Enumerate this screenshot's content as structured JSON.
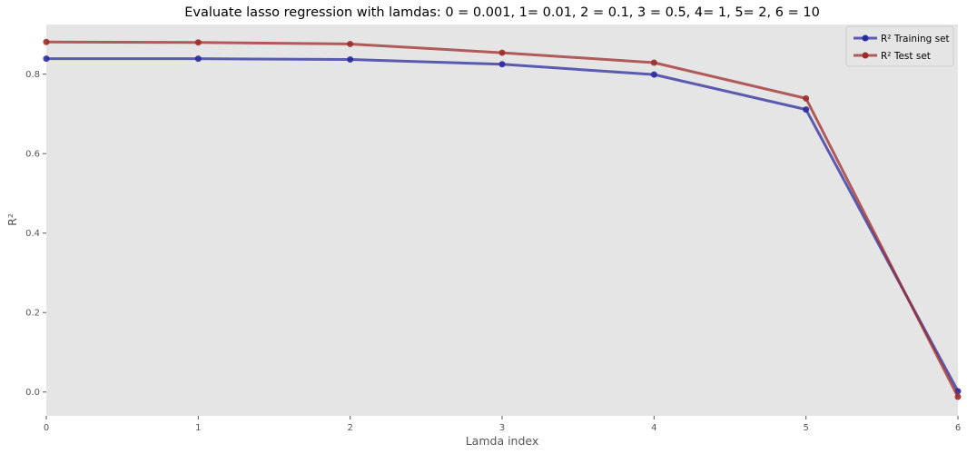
{
  "chart_data": {
    "type": "line",
    "title": "Evaluate lasso regression with lamdas: 0 = 0.001, 1= 0.01, 2 = 0.1, 3 = 0.5, 4= 1, 5= 2, 6 = 10",
    "xlabel": "Lamda index",
    "ylabel": "R²",
    "x": [
      0,
      1,
      2,
      3,
      4,
      5,
      6
    ],
    "xticks": [
      "0",
      "1",
      "2",
      "3",
      "4",
      "5",
      "6"
    ],
    "yticks": [
      "0.0",
      "0.2",
      "0.4",
      "0.6",
      "0.8"
    ],
    "xlim": [
      0,
      6
    ],
    "ylim": [
      -0.06,
      0.925
    ],
    "grid": false,
    "legend_position": "top-right",
    "background_color": "#e5e5e5",
    "series": [
      {
        "name": "R² Training set",
        "values": [
          0.839,
          0.839,
          0.837,
          0.825,
          0.799,
          0.711,
          0.002
        ],
        "color": "#2b2b9e"
      },
      {
        "name": "R² Test set",
        "values": [
          0.881,
          0.88,
          0.876,
          0.854,
          0.829,
          0.739,
          -0.012
        ],
        "color": "#9e2b2b"
      }
    ]
  }
}
